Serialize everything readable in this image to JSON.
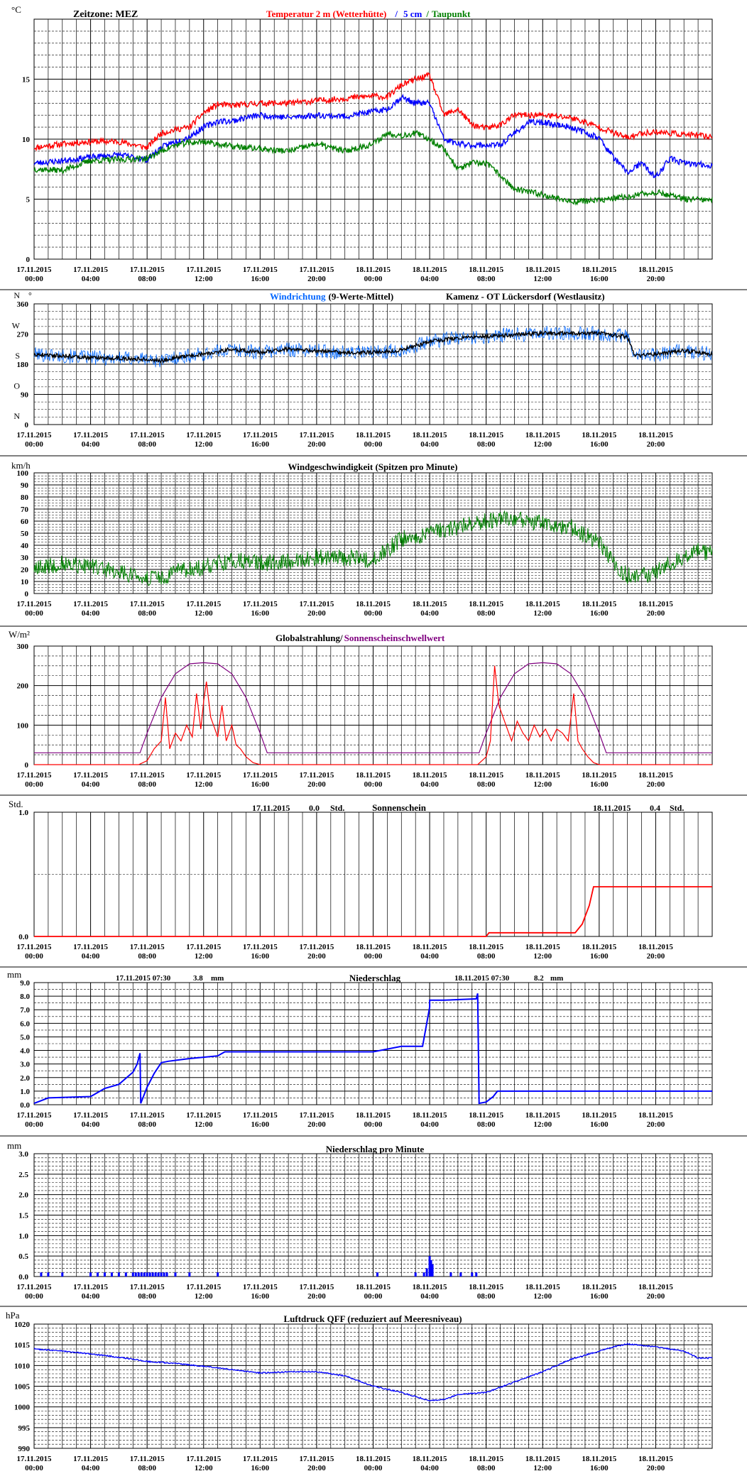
{
  "x_ticks": [
    {
      "date": "17.11.2015",
      "time": "00:00"
    },
    {
      "date": "17.11.2015",
      "time": "04:00"
    },
    {
      "date": "17.11.2015",
      "time": "08:00"
    },
    {
      "date": "17.11.2015",
      "time": "12:00"
    },
    {
      "date": "17.11.2015",
      "time": "16:00"
    },
    {
      "date": "17.11.2015",
      "time": "20:00"
    },
    {
      "date": "18.11.2015",
      "time": "00:00"
    },
    {
      "date": "18.11.2015",
      "time": "04:00"
    },
    {
      "date": "18.11.2015",
      "time": "08:00"
    },
    {
      "date": "18.11.2015",
      "time": "12:00"
    },
    {
      "date": "18.11.2015",
      "time": "16:00"
    },
    {
      "date": "18.11.2015",
      "time": "20:00"
    }
  ],
  "x_range_hours": [
    0,
    48
  ],
  "chart_data": [
    {
      "type": "line",
      "unit": "°C",
      "timezone_label": "Zeitzone: MEZ",
      "title_parts": [
        {
          "text": "Temperatur 2 m (Wetterhütte)",
          "color": "#ff0000"
        },
        {
          "text": "/",
          "color": "#0000ff"
        },
        {
          "text": "5 cm",
          "color": "#0000ff"
        },
        {
          "text": "/",
          "color": "#008000"
        },
        {
          "text": "Taupunkt",
          "color": "#008000"
        }
      ],
      "ylim": [
        0,
        20
      ],
      "yticks": [
        0,
        5,
        10,
        15
      ],
      "series": [
        {
          "name": "Temperatur 2 m (Wetterhütte)",
          "color": "#ff0000",
          "x": [
            0,
            2,
            4,
            6,
            8,
            9,
            10,
            11,
            12,
            13,
            14,
            15,
            16,
            18,
            20,
            22,
            24,
            25,
            26,
            27,
            28,
            29,
            30,
            31,
            32,
            33,
            34,
            35,
            36,
            38,
            40,
            42,
            43,
            44,
            46,
            48
          ],
          "y": [
            9.3,
            9.6,
            9.8,
            9.8,
            9.3,
            10.5,
            10.8,
            11,
            12.2,
            12.9,
            12.8,
            12.9,
            13,
            13,
            13.2,
            13.4,
            13.6,
            13.5,
            14.5,
            15,
            15.3,
            12,
            12.5,
            11.2,
            10.9,
            11.2,
            12,
            12,
            12,
            11.8,
            11,
            10.1,
            10.5,
            10.6,
            10.4,
            10.2
          ]
        },
        {
          "name": "5 cm",
          "color": "#0000ff",
          "x": [
            0,
            2,
            4,
            6,
            8,
            9,
            10,
            11,
            12,
            13,
            14,
            15,
            16,
            18,
            20,
            22,
            24,
            25,
            26,
            27,
            28,
            29,
            30,
            31,
            32,
            33,
            34,
            35,
            36,
            38,
            40,
            41,
            42,
            43,
            44,
            45,
            46,
            48
          ],
          "y": [
            8.0,
            8.2,
            8.5,
            8.7,
            8.3,
            9.3,
            9.8,
            10.2,
            11,
            11.5,
            11.5,
            11.8,
            12,
            11.8,
            12,
            11.9,
            12.3,
            12.5,
            13.5,
            13,
            13,
            10,
            9.6,
            9.5,
            9.5,
            9.5,
            10.5,
            11.4,
            11.4,
            11,
            10.1,
            8.5,
            7.2,
            8,
            6.8,
            8.4,
            8.0,
            7.8
          ]
        },
        {
          "name": "Taupunkt",
          "color": "#008000",
          "x": [
            0,
            2,
            4,
            6,
            8,
            9,
            10,
            11,
            12,
            13,
            14,
            15,
            16,
            18,
            20,
            22,
            24,
            25,
            26,
            27,
            28,
            29,
            30,
            31,
            32,
            33,
            34,
            36,
            38,
            40,
            42,
            44,
            46,
            48
          ],
          "y": [
            7.5,
            7.4,
            8.2,
            8.3,
            8.4,
            9.0,
            9.5,
            9.7,
            9.8,
            9.6,
            9.4,
            9.3,
            9.2,
            9.0,
            9.6,
            9.0,
            9.6,
            10.5,
            10.3,
            10.5,
            10,
            9.2,
            7.5,
            8,
            8,
            7,
            5.8,
            5.4,
            4.8,
            4.9,
            5.2,
            5.6,
            5.0,
            4.9
          ]
        }
      ]
    },
    {
      "type": "line",
      "title_parts": [
        {
          "text": "Windrichtung",
          "color": "#0066ff"
        },
        {
          "text": "(9-Werte-Mittel)",
          "color": "#000000"
        },
        {
          "text": "Kamenz - OT Lückersdorf (Westlausitz)",
          "color": "#000000"
        }
      ],
      "ylim": [
        0,
        360
      ],
      "ytick_values": [
        360,
        270,
        180,
        90,
        0
      ],
      "ytick_numbers": [
        "360",
        "270",
        "180",
        "90",
        "0"
      ],
      "ytick_letters": [
        "N",
        "W",
        "S",
        "O",
        "N"
      ],
      "degree_symbol": "°",
      "series": [
        {
          "name": "Windrichtung",
          "color": "#0066ff",
          "noise": 22,
          "x": [
            0,
            2,
            4,
            6,
            8,
            9,
            10,
            12,
            14,
            16,
            18,
            20,
            22,
            24,
            26,
            28,
            30,
            32,
            34,
            36,
            38,
            40,
            42,
            42.5,
            44,
            46,
            48
          ],
          "y": [
            210,
            205,
            200,
            198,
            195,
            190,
            200,
            210,
            225,
            215,
            225,
            220,
            215,
            215,
            222,
            248,
            258,
            262,
            268,
            272,
            272,
            272,
            262,
            205,
            210,
            220,
            210
          ]
        },
        {
          "name": "9-Werte-Mittel",
          "color": "#000000",
          "noise": 6,
          "x": [
            0,
            2,
            4,
            6,
            8,
            9,
            10,
            12,
            14,
            16,
            18,
            20,
            22,
            24,
            26,
            28,
            30,
            32,
            34,
            36,
            38,
            40,
            42,
            42.5,
            44,
            46,
            48
          ],
          "y": [
            210,
            205,
            200,
            198,
            195,
            190,
            200,
            210,
            225,
            215,
            225,
            220,
            215,
            215,
            222,
            248,
            258,
            262,
            268,
            272,
            272,
            272,
            262,
            205,
            210,
            220,
            210
          ]
        }
      ]
    },
    {
      "type": "line",
      "unit": "km/h",
      "title": "Windgeschwindigkeit (Spitzen pro Minute)",
      "ylim": [
        0,
        100
      ],
      "yticks": [
        0,
        10,
        20,
        30,
        40,
        50,
        60,
        70,
        80,
        90,
        100
      ],
      "series": [
        {
          "name": "Windgeschwindigkeit",
          "color": "#008000",
          "noise": 7,
          "x": [
            0,
            2,
            4,
            6,
            7,
            8,
            9,
            10,
            12,
            14,
            16,
            18,
            20,
            22,
            24,
            26,
            28,
            30,
            32,
            34,
            36,
            38,
            40,
            41,
            42,
            43,
            44,
            45,
            46,
            47,
            48
          ],
          "y": [
            20,
            25,
            22,
            18,
            15,
            13,
            12,
            18,
            22,
            28,
            25,
            27,
            30,
            30,
            28,
            45,
            50,
            55,
            60,
            62,
            58,
            55,
            42,
            25,
            15,
            14,
            18,
            25,
            30,
            35,
            33
          ]
        }
      ]
    },
    {
      "type": "line",
      "unit": "W/m²",
      "title_parts": [
        {
          "text": "Globalstrahlung/",
          "color": "#000000"
        },
        {
          "text": "Sonnenscheinschwellwert",
          "color": "#800080"
        }
      ],
      "ylim": [
        0,
        300
      ],
      "yticks": [
        0,
        100,
        200,
        300
      ],
      "series": [
        {
          "name": "Globalstrahlung",
          "color": "#ff0000",
          "x": [
            0,
            7.4,
            8.0,
            8.5,
            9.0,
            9.3,
            9.6,
            10,
            10.4,
            10.8,
            11.2,
            11.5,
            11.8,
            12.0,
            12.2,
            12.5,
            12.8,
            13.0,
            13.3,
            13.6,
            14.0,
            14.3,
            14.6,
            15.0,
            15.5,
            16,
            24,
            31.4,
            32,
            32.3,
            32.6,
            32.9,
            33.2,
            33.5,
            33.8,
            34.2,
            34.6,
            35,
            35.4,
            35.8,
            36.2,
            36.6,
            37,
            37.4,
            37.8,
            38.2,
            38.5,
            38.8,
            39.2,
            39.6,
            40,
            48
          ],
          "y": [
            0,
            0,
            10,
            40,
            60,
            170,
            40,
            80,
            60,
            100,
            70,
            180,
            90,
            160,
            210,
            120,
            90,
            70,
            150,
            60,
            100,
            50,
            40,
            20,
            5,
            0,
            0,
            0,
            20,
            60,
            250,
            150,
            120,
            90,
            60,
            110,
            80,
            60,
            100,
            70,
            90,
            60,
            90,
            80,
            60,
            180,
            60,
            40,
            20,
            5,
            0,
            0
          ]
        },
        {
          "name": "Sonnenscheinschwellwert",
          "color": "#800080",
          "x": [
            0,
            7.5,
            8,
            9,
            10,
            11,
            12,
            13,
            14,
            15,
            16,
            16.5,
            31.5,
            32,
            33,
            34,
            35,
            36,
            37,
            38,
            39,
            40,
            40.5,
            48
          ],
          "y": [
            30,
            30,
            80,
            170,
            230,
            255,
            258,
            255,
            230,
            170,
            80,
            30,
            30,
            80,
            170,
            230,
            255,
            258,
            255,
            230,
            170,
            80,
            30,
            30
          ]
        }
      ]
    },
    {
      "type": "line",
      "unit": "Std.",
      "title": "Sonnenschein",
      "ylim": [
        0,
        1
      ],
      "ytick_values": [
        0,
        0.5,
        1
      ],
      "ytick_labels": [
        "0.0",
        "",
        "1.0"
      ],
      "annotations": [
        {
          "date": "17.11.2015",
          "value": "0.0",
          "unit": "Std."
        },
        {
          "date": "18.11.2015",
          "value": "0.4",
          "unit": "Std."
        }
      ],
      "series": [
        {
          "name": "Sonnenschein",
          "color": "#ff0000",
          "x": [
            0,
            32,
            32.2,
            38.3,
            38.8,
            39.3,
            39.6,
            48
          ],
          "y": [
            0,
            0,
            0.03,
            0.03,
            0.1,
            0.25,
            0.4,
            0.4
          ]
        }
      ]
    },
    {
      "type": "line",
      "unit": "mm",
      "title": "Niederschlag",
      "ylim": [
        0,
        9
      ],
      "yticks": [
        0,
        1,
        2,
        3,
        4,
        5,
        6,
        7,
        8,
        9
      ],
      "ytick_labels": [
        "0.0",
        "1.0",
        "2.0",
        "3.0",
        "4.0",
        "5.0",
        "6.0",
        "7.0",
        "8.0",
        "9.0"
      ],
      "annotations": [
        {
          "date": "17.11.2015 07:30",
          "value": "3.8",
          "unit": "mm"
        },
        {
          "date": "18.11.2015 07:30",
          "value": "8.2",
          "unit": "mm"
        }
      ],
      "series": [
        {
          "name": "Niederschlag",
          "color": "#0000ff",
          "x": [
            0,
            0.5,
            1,
            4,
            5,
            6,
            7,
            7.3,
            7.5,
            7.55,
            8,
            8.5,
            9,
            9.5,
            11,
            12,
            13,
            13.5,
            14,
            16,
            20,
            24,
            26,
            27.5,
            28,
            28,
            28.5,
            29,
            31.3,
            31.4,
            31.5,
            32,
            32.5,
            32.8,
            33.2,
            48
          ],
          "y": [
            0.1,
            0.3,
            0.5,
            0.6,
            1.2,
            1.5,
            2.4,
            3.0,
            3.8,
            0.1,
            1.3,
            2.3,
            3.1,
            3.2,
            3.4,
            3.5,
            3.6,
            3.9,
            3.9,
            3.9,
            3.9,
            3.9,
            4.3,
            4.3,
            7.2,
            7.7,
            7.7,
            7.7,
            7.8,
            8.2,
            0.1,
            0.2,
            0.6,
            1.0,
            1.0,
            1.0
          ]
        }
      ]
    },
    {
      "type": "bar",
      "unit": "mm",
      "title": "Niederschlag pro Minute",
      "ylim": [
        0,
        3
      ],
      "yticks": [
        0,
        0.5,
        1,
        1.5,
        2,
        2.5,
        3
      ],
      "ytick_labels": [
        "0.0",
        "0.5",
        "1.0",
        "1.5",
        "2.0",
        "2.5",
        "3.0"
      ],
      "color": "#0000ff",
      "x": [
        0.5,
        1,
        2,
        4,
        4.5,
        5,
        5.5,
        6,
        6.5,
        7,
        7.2,
        7.4,
        7.6,
        7.8,
        8,
        8.2,
        8.4,
        8.6,
        8.8,
        9,
        9.2,
        9.4,
        10,
        11,
        13,
        24.3,
        27,
        27.6,
        27.8,
        28,
        28.1,
        28.2,
        29.5,
        30.2,
        31,
        31.3
      ],
      "y": [
        0.1,
        0.1,
        0.1,
        0.1,
        0.1,
        0.1,
        0.1,
        0.1,
        0.1,
        0.1,
        0.1,
        0.1,
        0.1,
        0.1,
        0.1,
        0.1,
        0.1,
        0.1,
        0.1,
        0.1,
        0.1,
        0.1,
        0.1,
        0.1,
        0.1,
        0.1,
        0.1,
        0.1,
        0.2,
        0.5,
        0.4,
        0.3,
        0.1,
        0.1,
        0.1,
        0.1
      ]
    },
    {
      "type": "line",
      "unit": "hPa",
      "title": "Luftdruck QFF (reduziert auf Meeresniveau)",
      "ylim": [
        990,
        1020
      ],
      "yticks": [
        990,
        995,
        1000,
        1005,
        1010,
        1015,
        1020
      ],
      "series": [
        {
          "name": "Luftdruck QFF",
          "color": "#0000ff",
          "x": [
            0,
            2,
            4,
            6,
            8,
            10,
            12,
            14,
            16,
            18,
            20,
            22,
            24,
            26,
            28,
            29,
            30,
            32,
            34,
            36,
            38,
            40,
            41,
            42,
            44,
            46,
            47,
            48
          ],
          "y": [
            1014,
            1013.5,
            1012.8,
            1012,
            1011,
            1010.5,
            1009.8,
            1009,
            1008.2,
            1008.5,
            1008.5,
            1007.5,
            1005,
            1003.5,
            1001.5,
            1001.8,
            1003,
            1003.5,
            1006,
            1008.5,
            1011.5,
            1013.5,
            1014.5,
            1015.2,
            1014.5,
            1013.5,
            1011.8,
            1011.8
          ]
        }
      ]
    }
  ]
}
